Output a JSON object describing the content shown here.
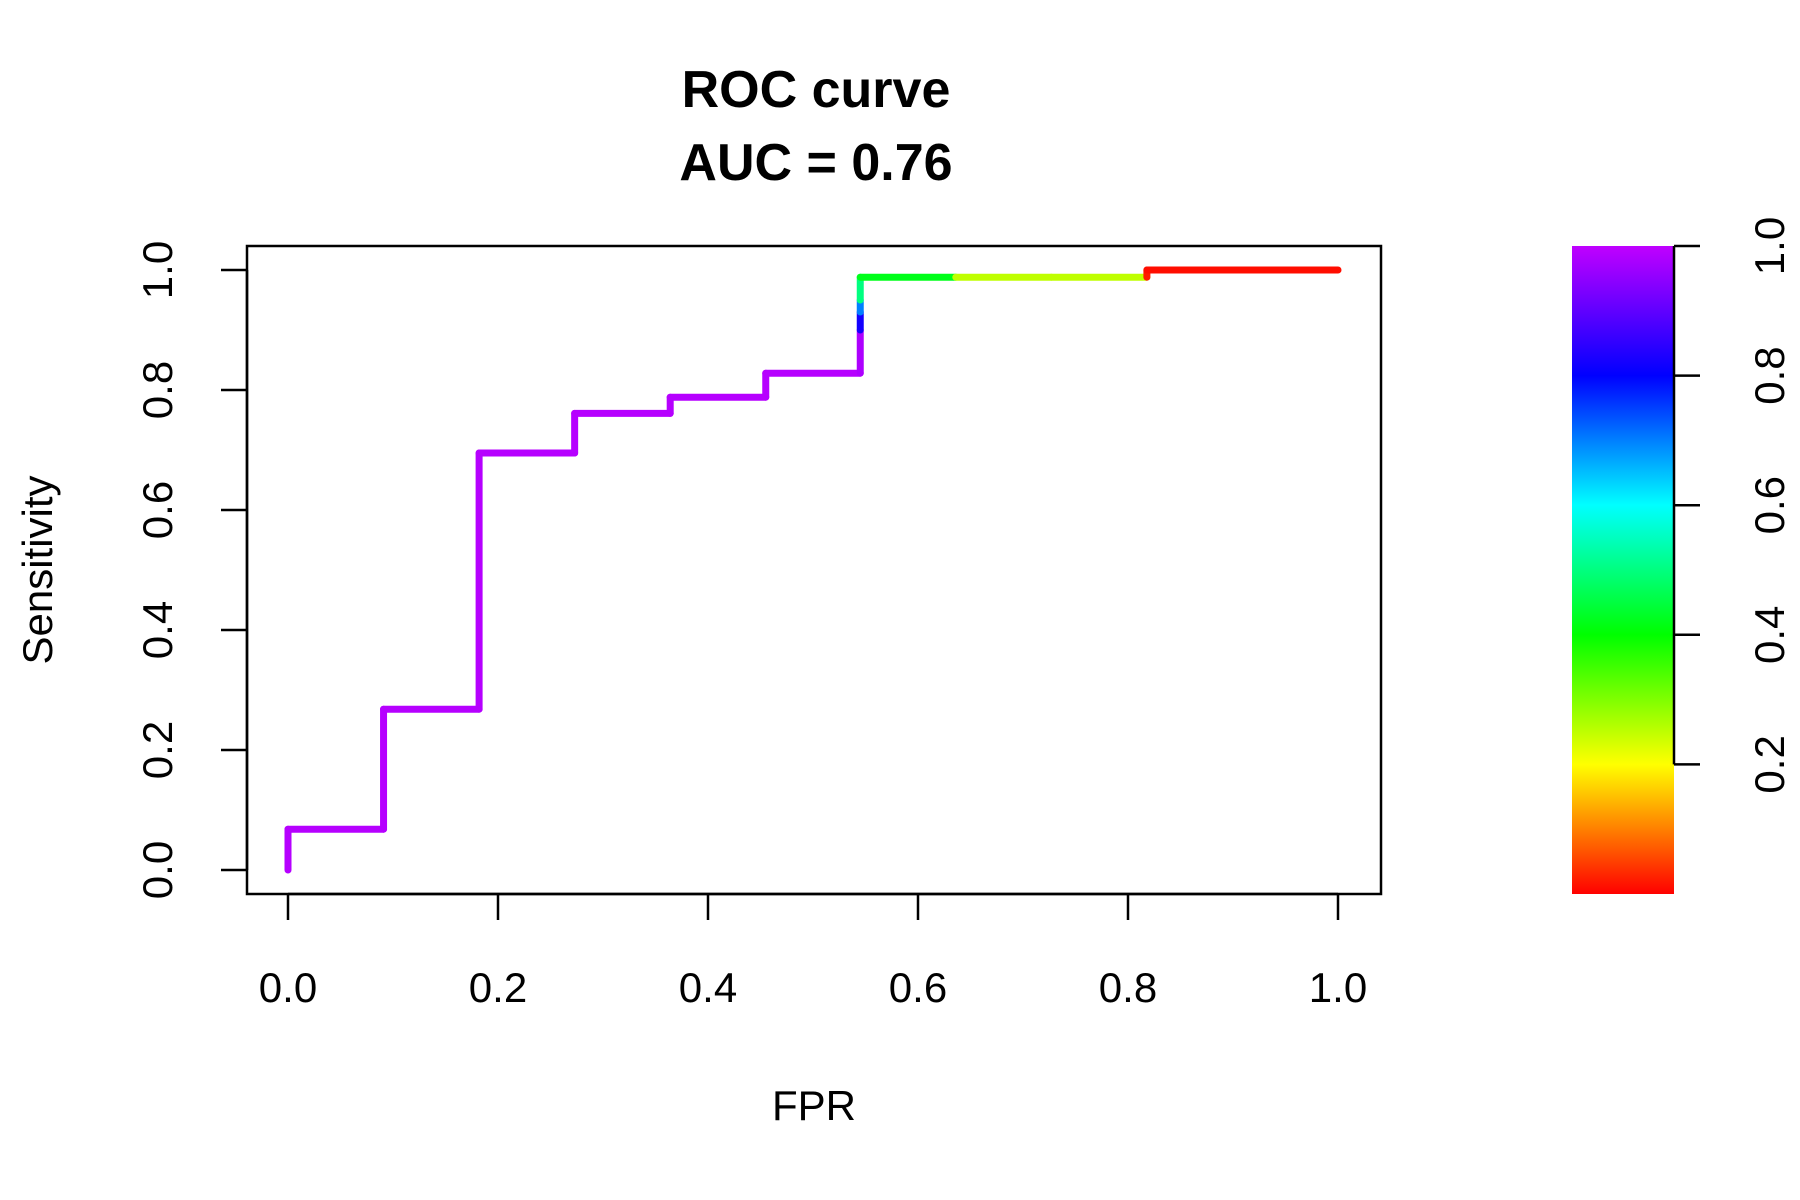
{
  "chart_data": {
    "type": "line",
    "title": "ROC curve",
    "subtitle": "AUC = 0.76",
    "xlabel": "FPR",
    "ylabel": "Sensitivity",
    "xlim": [
      0,
      1
    ],
    "ylim": [
      0,
      1
    ],
    "x_ticks": [
      "0.0",
      "0.2",
      "0.4",
      "0.6",
      "0.8",
      "1.0"
    ],
    "y_ticks": [
      "0.0",
      "0.2",
      "0.4",
      "0.6",
      "0.8",
      "1.0"
    ],
    "grid": false,
    "series": [
      {
        "points": [
          {
            "x": 0.0,
            "y": 0.0,
            "threshold": 0.99
          },
          {
            "x": 0.0,
            "y": 0.068,
            "threshold": 0.99
          },
          {
            "x": 0.091,
            "y": 0.068,
            "threshold": 0.99
          },
          {
            "x": 0.091,
            "y": 0.268,
            "threshold": 0.99
          },
          {
            "x": 0.182,
            "y": 0.268,
            "threshold": 0.99
          },
          {
            "x": 0.182,
            "y": 0.695,
            "threshold": 0.99
          },
          {
            "x": 0.273,
            "y": 0.695,
            "threshold": 0.99
          },
          {
            "x": 0.273,
            "y": 0.761,
            "threshold": 0.99
          },
          {
            "x": 0.364,
            "y": 0.761,
            "threshold": 0.99
          },
          {
            "x": 0.364,
            "y": 0.788,
            "threshold": 0.99
          },
          {
            "x": 0.455,
            "y": 0.788,
            "threshold": 0.99
          },
          {
            "x": 0.455,
            "y": 0.828,
            "threshold": 0.99
          },
          {
            "x": 0.545,
            "y": 0.828,
            "threshold": 0.99
          },
          {
            "x": 0.545,
            "y": 0.9,
            "threshold": 0.98
          },
          {
            "x": 0.545,
            "y": 0.93,
            "threshold": 0.82
          },
          {
            "x": 0.545,
            "y": 0.95,
            "threshold": 0.7
          },
          {
            "x": 0.545,
            "y": 0.988,
            "threshold": 0.5
          },
          {
            "x": 0.636,
            "y": 0.988,
            "threshold": 0.42
          },
          {
            "x": 0.727,
            "y": 0.988,
            "threshold": 0.25
          },
          {
            "x": 0.818,
            "y": 0.988,
            "threshold": 0.25
          },
          {
            "x": 0.818,
            "y": 1.0,
            "threshold": 0.02
          },
          {
            "x": 1.0,
            "y": 1.0,
            "threshold": 0.01
          }
        ]
      }
    ],
    "colorbar": {
      "range": [
        0,
        1
      ],
      "ticks": [
        "0.2",
        "0.4",
        "0.6",
        "0.8",
        "1.0"
      ],
      "colors": [
        "#ff0000",
        "#ffff00",
        "#00ff00",
        "#00ffff",
        "#0000ff",
        "#c000ff"
      ]
    }
  }
}
